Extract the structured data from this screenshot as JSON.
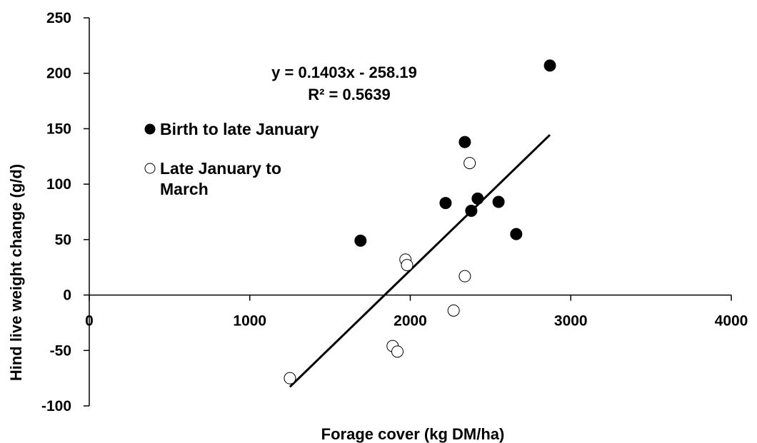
{
  "chart_data": {
    "type": "scatter",
    "xlabel": "Forage cover (kg DM/ha)",
    "ylabel": "Hind live weight change (g/d)",
    "xlim": [
      0,
      4000
    ],
    "ylim": [
      -100,
      250
    ],
    "x_ticks": [
      0,
      1000,
      2000,
      3000,
      4000
    ],
    "y_ticks": [
      -100,
      -50,
      0,
      50,
      100,
      150,
      200,
      250
    ],
    "grid": false,
    "legend_position": "upper-left",
    "series": [
      {
        "name": "Birth to late January",
        "marker": "filled-circle",
        "color": "#000000",
        "points": [
          {
            "x": 1690,
            "y": 49
          },
          {
            "x": 2220,
            "y": 83
          },
          {
            "x": 2340,
            "y": 138
          },
          {
            "x": 2380,
            "y": 76
          },
          {
            "x": 2420,
            "y": 87
          },
          {
            "x": 2550,
            "y": 84
          },
          {
            "x": 2660,
            "y": 55
          },
          {
            "x": 2870,
            "y": 207
          }
        ]
      },
      {
        "name": "Late January to March",
        "name_lines": [
          "Late January to",
          "March"
        ],
        "marker": "open-circle",
        "color": "#000000",
        "points": [
          {
            "x": 1250,
            "y": -75
          },
          {
            "x": 1890,
            "y": -46
          },
          {
            "x": 1920,
            "y": -51
          },
          {
            "x": 1970,
            "y": 32
          },
          {
            "x": 1980,
            "y": 27
          },
          {
            "x": 2270,
            "y": -14
          },
          {
            "x": 2340,
            "y": 17
          },
          {
            "x": 2370,
            "y": 119
          }
        ]
      }
    ],
    "trendline": {
      "slope": 0.1403,
      "intercept": -258.19,
      "x_range": [
        1250,
        2870
      ],
      "equation": "y = 0.1403x - 258.19",
      "r2": "R² = 0.5639"
    }
  }
}
